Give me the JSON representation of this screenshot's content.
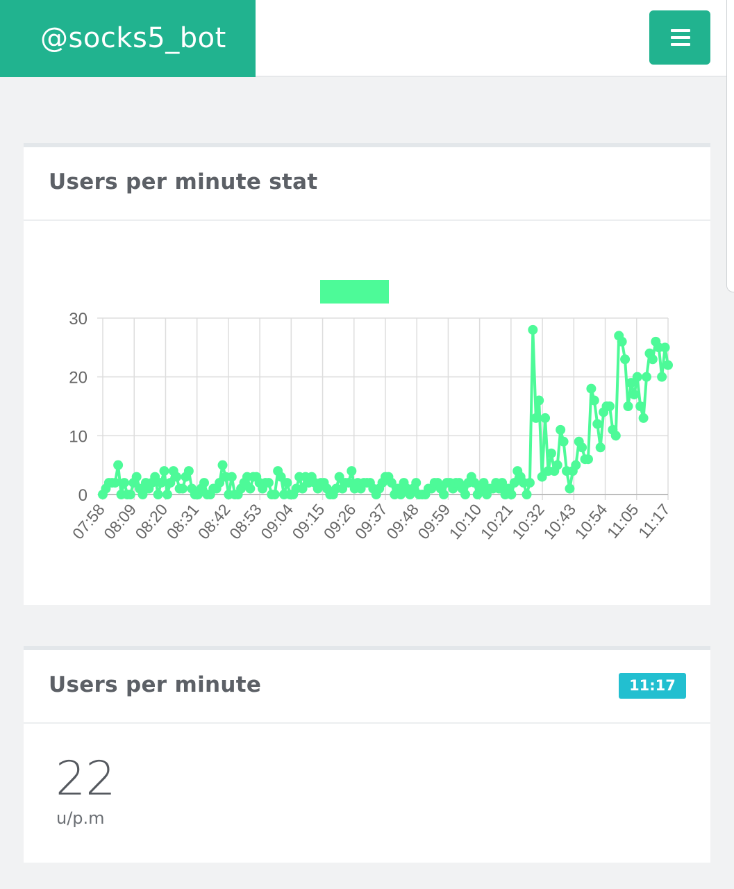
{
  "header": {
    "brand": "@socks5_bot",
    "menu_icon": "hamburger-menu-icon",
    "accent": "#21b38f"
  },
  "stat_card": {
    "title": "Users per minute stat"
  },
  "chart_data": {
    "type": "line",
    "series_color": "#4dfa98",
    "legend": {
      "placement": "top-center",
      "label": ""
    },
    "ylim": [
      0,
      30
    ],
    "yticks": [
      0,
      10,
      20,
      30
    ],
    "xticks": [
      "07:58",
      "08:09",
      "08:20",
      "08:31",
      "08:42",
      "08:53",
      "09:04",
      "09:15",
      "09:26",
      "09:37",
      "09:48",
      "09:59",
      "10:10",
      "10:21",
      "10:32",
      "10:43",
      "10:54",
      "11:05",
      "11:17"
    ],
    "grid": true,
    "series": [
      {
        "values": [
          0,
          1,
          2,
          2,
          2,
          5,
          0,
          2,
          0,
          0,
          2,
          3,
          1,
          0,
          2,
          1,
          2,
          3,
          0,
          2,
          4,
          0,
          2,
          4,
          3,
          1,
          1,
          3,
          4,
          1,
          0,
          0,
          1,
          2,
          0,
          0,
          1,
          1,
          2,
          5,
          3,
          0,
          3,
          0,
          0,
          1,
          2,
          3,
          1,
          3,
          3,
          2,
          1,
          2,
          2,
          0,
          0,
          4,
          3,
          0,
          2,
          0,
          0,
          1,
          3,
          1,
          3,
          2,
          3,
          2,
          1,
          2,
          2,
          1,
          0,
          0,
          1,
          3,
          1,
          2,
          2,
          4,
          1,
          2,
          1,
          2,
          2,
          2,
          1,
          0,
          1,
          2,
          3,
          3,
          2,
          0,
          1,
          0,
          2,
          1,
          0,
          1,
          2,
          0,
          0,
          0,
          1,
          1,
          2,
          2,
          1,
          0,
          2,
          2,
          1,
          2,
          2,
          1,
          0,
          2,
          3,
          2,
          0,
          1,
          2,
          0,
          1,
          1,
          2,
          1,
          2,
          0,
          1,
          0,
          2,
          4,
          3,
          2,
          0,
          2,
          28,
          13,
          16,
          3,
          13,
          4,
          7,
          4,
          5,
          11,
          9,
          4,
          1,
          4,
          5,
          9,
          8,
          6,
          6,
          18,
          16,
          12,
          8,
          14,
          15,
          15,
          11,
          10,
          27,
          26,
          23,
          15,
          19,
          17,
          20,
          15,
          13,
          20,
          24,
          23,
          26,
          25,
          20,
          25,
          22
        ]
      }
    ]
  },
  "current_card": {
    "title": "Users per minute",
    "badge": "11:17",
    "badge_color": "#22bfd0",
    "value": "22",
    "unit": "u/p.m"
  }
}
